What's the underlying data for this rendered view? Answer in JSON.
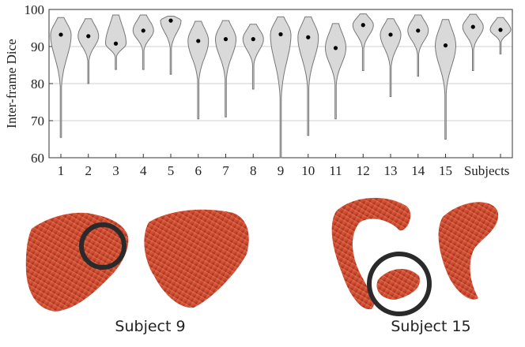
{
  "chart_data": {
    "type": "violin",
    "ylabel": "Inter-frame Dice",
    "categories": [
      "1",
      "2",
      "3",
      "4",
      "5",
      "6",
      "7",
      "8",
      "9",
      "10",
      "11",
      "12",
      "13",
      "14",
      "15",
      "Subjects",
      null
    ],
    "values": [
      93.2,
      92.8,
      90.8,
      94.3,
      97,
      91.5,
      92,
      92,
      93.3,
      92.5,
      89.6,
      95.8,
      93.2,
      94.3,
      90.3,
      95.3,
      94.5
    ],
    "min": [
      65.5,
      80,
      83.8,
      83.8,
      82.5,
      70.5,
      71,
      78.5,
      60,
      66,
      70.5,
      83.5,
      76.5,
      82,
      65,
      83.5,
      88
    ],
    "max": [
      97.8,
      97.5,
      98.5,
      98.5,
      98.2,
      96.8,
      97,
      96,
      98,
      98,
      96.2,
      98.8,
      97.5,
      98.5,
      97.3,
      98.7,
      97.8
    ],
    "color": "#d9d9d9",
    "ylim": [
      60,
      100
    ],
    "yticks": [
      60,
      70,
      80,
      90,
      100
    ],
    "grid": true
  },
  "captions": [
    "Subject 9",
    "Subject 15"
  ]
}
